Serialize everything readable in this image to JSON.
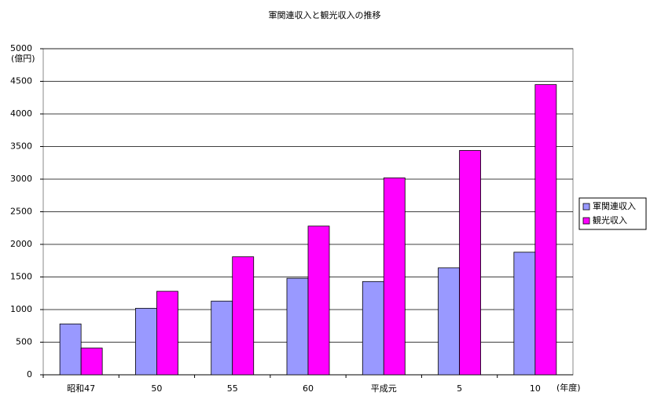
{
  "chart_data": {
    "type": "bar",
    "title": "軍関連収入と観光収入の推移",
    "y_unit_label": "(億円)",
    "x_unit_label": "(年度)",
    "categories": [
      "昭和47",
      "50",
      "55",
      "60",
      "平成元",
      "5",
      "10"
    ],
    "series": [
      {
        "name": "軍関連収入",
        "color": "#9999ff",
        "values": [
          780,
          1020,
          1130,
          1480,
          1430,
          1640,
          1880
        ]
      },
      {
        "name": "観光収入",
        "color": "#ff00ff",
        "values": [
          410,
          1280,
          1810,
          2280,
          3020,
          3440,
          4450
        ]
      }
    ],
    "ylim": [
      0,
      5000
    ],
    "yticks": [
      0,
      500,
      1000,
      1500,
      2000,
      2500,
      3000,
      3500,
      4000,
      4500,
      5000
    ],
    "grid": true,
    "legend": "right"
  }
}
